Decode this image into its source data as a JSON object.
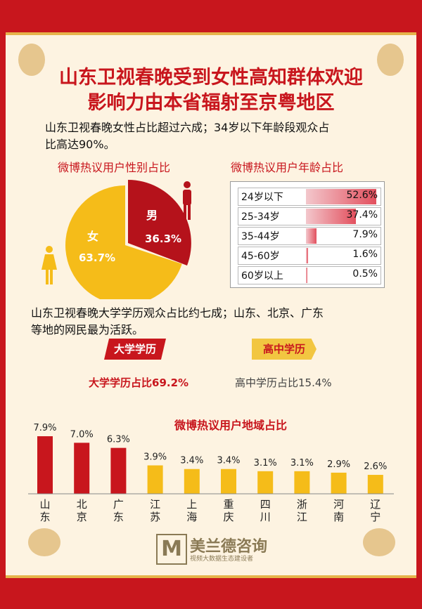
{
  "title": {
    "line1": "山东卫视春晚受到女性高知群体欢迎",
    "line2": "影响力由本省辐射至京粤地区"
  },
  "intro1": {
    "line1": "山东卫视春晚女性占比超过六成；34岁以下年龄段观众占",
    "line2": "比高达90%。"
  },
  "gender": {
    "title": "微博热议用户性别占比",
    "male_label": "男",
    "male_value": "36.3%",
    "female_label": "女",
    "female_value": "63.7%",
    "male_color": "#b5121b",
    "female_color": "#f5bc19"
  },
  "age": {
    "title": "微博热议用户年龄占比",
    "rows": [
      {
        "label": "24岁以下",
        "value": "52.6%",
        "pct": 52.6
      },
      {
        "label": "25-34岁",
        "value": "37.4%",
        "pct": 37.4
      },
      {
        "label": "35-44岁",
        "value": "7.9%",
        "pct": 7.9
      },
      {
        "label": "45-60岁",
        "value": "1.6%",
        "pct": 1.6
      },
      {
        "label": "60岁以上",
        "value": "0.5%",
        "pct": 0.5
      }
    ]
  },
  "intro2": {
    "line1": "山东卫视春晚大学学历观众占比约七成；山东、北京、广东",
    "line2": "等地的网民最为活跃。"
  },
  "education": {
    "college_ribbon": "大学学历",
    "high_ribbon": "高中学历",
    "college_stat": "大学学历占比69.2%",
    "high_stat": "高中学历占比15.4%"
  },
  "region_title": "微博热议用户地域占比",
  "logo": {
    "mark": "M",
    "name": "美兰德咨询",
    "sub": "视频大数据生态建设者"
  },
  "chart_data": {
    "type": "bar",
    "categories": [
      "山东",
      "北京",
      "广东",
      "江苏",
      "上海",
      "重庆",
      "四川",
      "浙江",
      "河南",
      "辽宁"
    ],
    "values": [
      7.9,
      7.0,
      6.3,
      3.9,
      3.4,
      3.4,
      3.1,
      3.1,
      2.9,
      2.6
    ],
    "value_labels": [
      "7.9%",
      "7.0%",
      "6.3%",
      "3.9%",
      "3.4%",
      "3.4%",
      "3.1%",
      "3.1%",
      "2.9%",
      "2.6%"
    ],
    "title": "微博热议用户地域占比",
    "ylim": [
      0,
      8
    ],
    "colors": {
      "top": "#c8161d",
      "other": "#f5bc19"
    },
    "grid": false
  }
}
